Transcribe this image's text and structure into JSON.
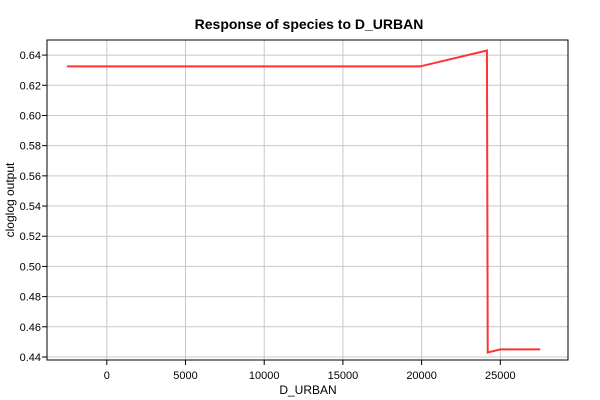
{
  "chart_data": {
    "type": "line",
    "title": "Response of species to D_URBAN",
    "xlabel": "D_URBAN",
    "ylabel": "cloglog output",
    "xlim": [
      -3800,
      29300
    ],
    "ylim": [
      0.438,
      0.65
    ],
    "xticks": [
      0,
      5000,
      10000,
      15000,
      20000,
      25000
    ],
    "yticks": [
      0.44,
      0.46,
      0.48,
      0.5,
      0.52,
      0.54,
      0.56,
      0.58,
      0.6,
      0.62,
      0.64
    ],
    "grid": true,
    "series": [
      {
        "color": "#ff3333",
        "x": [
          -2500,
          19900,
          24150,
          24200,
          25000,
          27500
        ],
        "y": [
          0.6325,
          0.6325,
          0.643,
          0.443,
          0.445,
          0.445
        ]
      }
    ]
  }
}
